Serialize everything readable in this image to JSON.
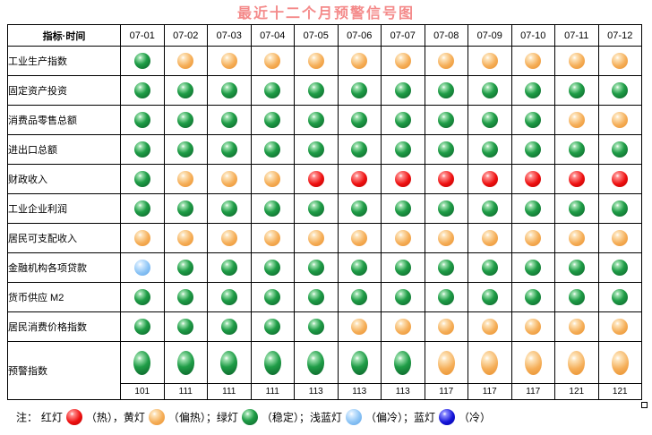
{
  "title": "最近十二个月预警信号图",
  "header": {
    "corner": "指标·时间"
  },
  "months": [
    "07-01",
    "07-02",
    "07-03",
    "07-04",
    "07-05",
    "07-06",
    "07-07",
    "07-08",
    "07-09",
    "07-10",
    "07-11",
    "07-12"
  ],
  "indicators": [
    {
      "name": "工业生产指数",
      "signals": [
        "green",
        "yellow",
        "yellow",
        "yellow",
        "yellow",
        "yellow",
        "yellow",
        "yellow",
        "yellow",
        "yellow",
        "yellow",
        "yellow"
      ]
    },
    {
      "name": "固定资产投资",
      "signals": [
        "green",
        "green",
        "green",
        "green",
        "green",
        "green",
        "green",
        "green",
        "green",
        "green",
        "green",
        "green"
      ]
    },
    {
      "name": "消费品零售总额",
      "signals": [
        "green",
        "green",
        "green",
        "green",
        "green",
        "green",
        "green",
        "green",
        "green",
        "green",
        "yellow",
        "yellow"
      ]
    },
    {
      "name": "进出口总额",
      "signals": [
        "green",
        "green",
        "green",
        "green",
        "green",
        "green",
        "green",
        "green",
        "green",
        "green",
        "green",
        "green"
      ]
    },
    {
      "name": "财政收入",
      "signals": [
        "green",
        "yellow",
        "yellow",
        "yellow",
        "red",
        "red",
        "red",
        "red",
        "red",
        "red",
        "red",
        "red"
      ]
    },
    {
      "name": "工业企业利润",
      "signals": [
        "green",
        "green",
        "green",
        "green",
        "green",
        "green",
        "green",
        "green",
        "green",
        "green",
        "green",
        "green"
      ]
    },
    {
      "name": "居民可支配收入",
      "signals": [
        "yellow",
        "yellow",
        "yellow",
        "yellow",
        "yellow",
        "yellow",
        "yellow",
        "yellow",
        "yellow",
        "yellow",
        "yellow",
        "yellow"
      ]
    },
    {
      "name": "金融机构各项贷款",
      "signals": [
        "lightblue",
        "green",
        "green",
        "green",
        "green",
        "green",
        "green",
        "green",
        "green",
        "green",
        "green",
        "green"
      ]
    },
    {
      "name": "货币供应 M2",
      "signals": [
        "green",
        "green",
        "green",
        "green",
        "green",
        "green",
        "green",
        "green",
        "green",
        "green",
        "green",
        "green"
      ]
    },
    {
      "name": "居民消费价格指数",
      "signals": [
        "green",
        "green",
        "green",
        "green",
        "green",
        "yellow",
        "yellow",
        "yellow",
        "yellow",
        "yellow",
        "yellow",
        "yellow"
      ]
    }
  ],
  "composite": {
    "name": "预警指数",
    "signals": [
      "green",
      "green",
      "green",
      "green",
      "green",
      "green",
      "green",
      "yellow",
      "yellow",
      "yellow",
      "yellow",
      "yellow"
    ],
    "scores": [
      "101",
      "111",
      "111",
      "111",
      "113",
      "113",
      "113",
      "117",
      "117",
      "117",
      "121",
      "121"
    ]
  },
  "legend": {
    "prefix": "注：",
    "items": [
      {
        "label": "红灯",
        "color": "red",
        "meaning": "（热），"
      },
      {
        "label": "黄灯",
        "color": "yellow",
        "meaning": "（偏热）；"
      },
      {
        "label": "绿灯",
        "color": "green",
        "meaning": "（稳定）；"
      },
      {
        "label": "浅蓝灯",
        "color": "lightblue",
        "meaning": "（偏冷）；"
      },
      {
        "label": "蓝灯",
        "color": "blue",
        "meaning": "（冷）"
      }
    ]
  },
  "colors": {
    "red": "#ee1010",
    "yellow": "#f5ae58",
    "green": "#1f9d47",
    "lightblue": "#8cc4f5",
    "blue": "#1414d8",
    "title": "#f48a8a"
  }
}
